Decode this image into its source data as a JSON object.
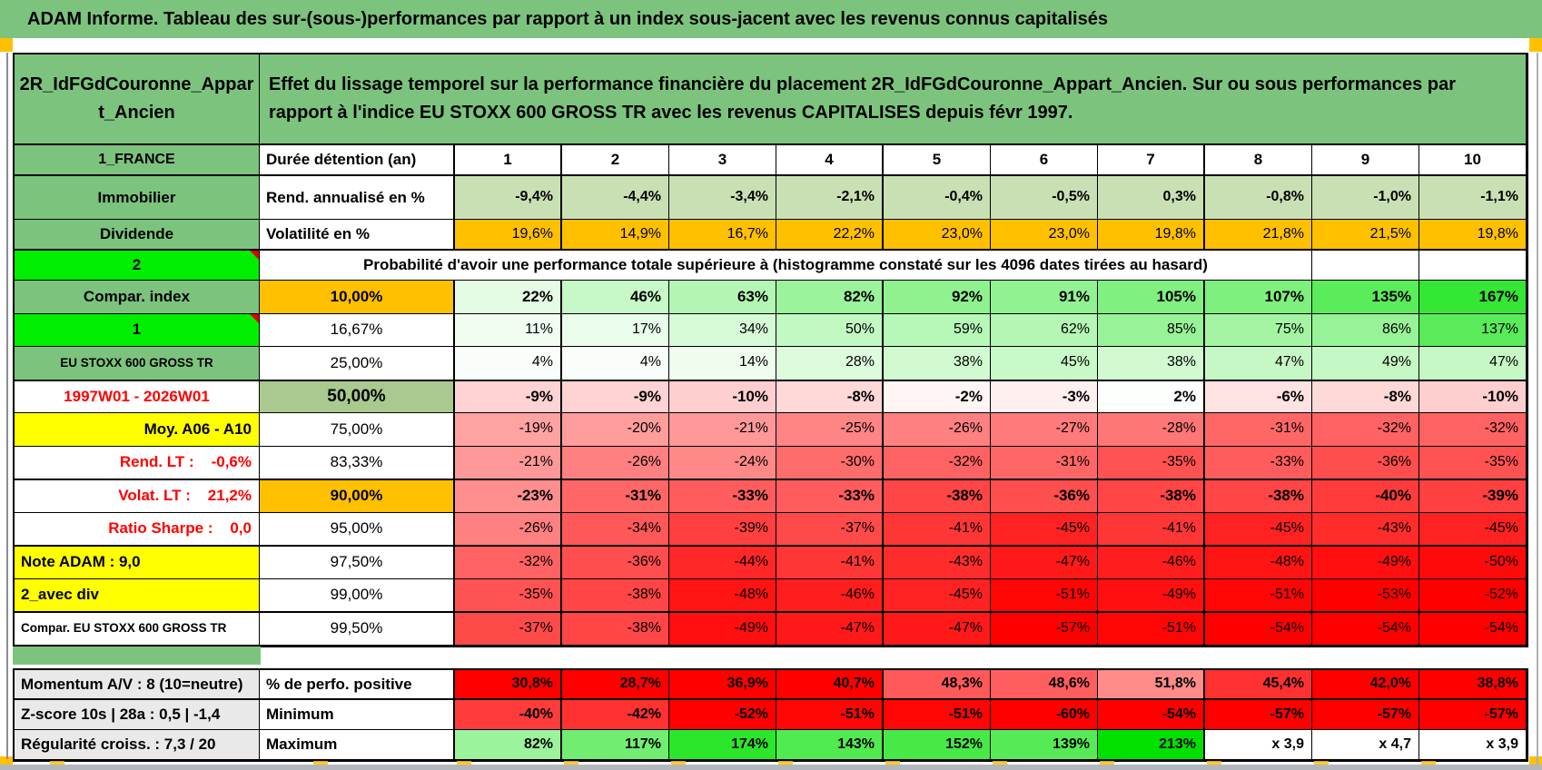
{
  "title": "ADAM Informe. Tableau des sur-(sous-)performances par rapport à un index sous-jacent avec les revenus connus capitalisés",
  "colors": {
    "table_green": "#7cc47e",
    "bright_green": "#00ee00",
    "orange": "#ffc000",
    "yellow": "#ffff00",
    "olive": "#a9c98f",
    "light_green_row": "#c9e0b4",
    "gray_label": "#e9e9e9",
    "red_text": "#ff0000",
    "marker_orange": "#ffc000"
  },
  "header": {
    "placement_name": "2R_IdFGdCouronne_Appart_Ancien",
    "description": "Effet du lissage temporel sur la performance financière du placement 2R_IdFGdCouronne_Appart_Ancien. Sur ou sous performances par rapport à l'indice EU STOXX 600 GROSS TR avec les revenus CAPITALISES depuis févr 1997."
  },
  "duration_row": {
    "label": "1_FRANCE",
    "metric": "Durée détention (an)",
    "values": [
      "1",
      "2",
      "3",
      "4",
      "5",
      "6",
      "7",
      "8",
      "9",
      "10"
    ]
  },
  "top_rows": [
    {
      "label": "Immobilier",
      "metric": "Rend. annualisé en %",
      "cmap": "lightgreen",
      "bold": true,
      "values": [
        "-9,4%",
        "-4,4%",
        "-3,4%",
        "-2,1%",
        "-0,4%",
        "-0,5%",
        "0,3%",
        "-0,8%",
        "-1,0%",
        "-1,1%"
      ]
    },
    {
      "label": "Dividende",
      "metric": "Volatilité en %",
      "cmap": "orange",
      "bold": false,
      "values": [
        "19,6%",
        "14,9%",
        "16,7%",
        "22,2%",
        "23,0%",
        "23,0%",
        "19,8%",
        "21,8%",
        "21,5%",
        "19,8%"
      ]
    }
  ],
  "probability_header": {
    "label": "2",
    "text": "Probabilité d'avoir une performance totale supérieure à (histogramme constaté sur les 4096 dates tirées au hasard)"
  },
  "probability_rows": [
    {
      "label": "Compar. index",
      "label_style": "green",
      "threshold": "10,00%",
      "threshold_style": "orange",
      "bold": true,
      "thick_top": false,
      "values": [
        "22%",
        "46%",
        "63%",
        "82%",
        "92%",
        "91%",
        "105%",
        "107%",
        "135%",
        "167%"
      ]
    },
    {
      "label": "1",
      "label_style": "bright",
      "marker": true,
      "threshold": "16,67%",
      "threshold_style": "plain",
      "bold": false,
      "thick_top": false,
      "values": [
        "11%",
        "17%",
        "34%",
        "50%",
        "59%",
        "62%",
        "85%",
        "75%",
        "86%",
        "137%"
      ]
    },
    {
      "label": "EU STOXX 600 GROSS TR",
      "label_style": "green-small",
      "threshold": "25,00%",
      "threshold_style": "plain",
      "bold": false,
      "thick_top": false,
      "values": [
        "4%",
        "4%",
        "14%",
        "28%",
        "38%",
        "45%",
        "38%",
        "47%",
        "49%",
        "47%"
      ]
    },
    {
      "label": "1997W01 - 2026W01",
      "label_style": "red-center",
      "threshold": "50,00%",
      "threshold_style": "olive",
      "bold": true,
      "thick_top": true,
      "values": [
        "-9%",
        "-9%",
        "-10%",
        "-8%",
        "-2%",
        "-3%",
        "2%",
        "-6%",
        "-8%",
        "-10%"
      ]
    },
    {
      "label": "Moy. A06 - A10",
      "label_style": "yellow-right",
      "threshold": "75,00%",
      "threshold_style": "plain",
      "bold": false,
      "thick_top": false,
      "values": [
        "-19%",
        "-20%",
        "-21%",
        "-25%",
        "-26%",
        "-27%",
        "-28%",
        "-31%",
        "-32%",
        "-32%"
      ]
    },
    {
      "label": "Rend. LT :    -0,6%",
      "label_style": "red-right",
      "threshold": "83,33%",
      "threshold_style": "plain",
      "bold": false,
      "thick_top": false,
      "values": [
        "-21%",
        "-26%",
        "-24%",
        "-30%",
        "-32%",
        "-31%",
        "-35%",
        "-33%",
        "-36%",
        "-35%"
      ]
    },
    {
      "label": "Volat. LT :    21,2%",
      "label_style": "red-right",
      "threshold": "90,00%",
      "threshold_style": "orange",
      "bold": true,
      "thick_top": true,
      "values": [
        "-23%",
        "-31%",
        "-33%",
        "-33%",
        "-38%",
        "-36%",
        "-38%",
        "-38%",
        "-40%",
        "-39%"
      ]
    },
    {
      "label": "Ratio Sharpe :    0,0",
      "label_style": "red-right",
      "threshold": "95,00%",
      "threshold_style": "plain",
      "bold": false,
      "thick_top": false,
      "values": [
        "-26%",
        "-34%",
        "-39%",
        "-37%",
        "-41%",
        "-45%",
        "-41%",
        "-45%",
        "-43%",
        "-45%"
      ]
    },
    {
      "label": "Note ADAM : 9,0",
      "label_style": "yellow-left",
      "threshold": "97,50%",
      "threshold_style": "plain",
      "bold": false,
      "thick_top": true,
      "values": [
        "-32%",
        "-36%",
        "-44%",
        "-41%",
        "-43%",
        "-47%",
        "-46%",
        "-48%",
        "-49%",
        "-50%"
      ]
    },
    {
      "label": "2_avec div",
      "label_style": "yellow-left",
      "threshold": "99,00%",
      "threshold_style": "plain",
      "bold": false,
      "thick_top": false,
      "values": [
        "-35%",
        "-38%",
        "-48%",
        "-46%",
        "-45%",
        "-51%",
        "-49%",
        "-51%",
        "-53%",
        "-52%"
      ]
    },
    {
      "label": "Compar. EU STOXX 600 GROSS TR",
      "label_style": "white-left-small",
      "threshold": "99,50%",
      "threshold_style": "plain",
      "bold": false,
      "thick_top": true,
      "values": [
        "-37%",
        "-38%",
        "-49%",
        "-47%",
        "-47%",
        "-57%",
        "-51%",
        "-54%",
        "-54%",
        "-54%"
      ]
    }
  ],
  "footer_rows": [
    {
      "label": "Momentum A/V : 8 (10=neutre)",
      "metric": "% de perfo. positive",
      "cmap": "perfo",
      "bold": true,
      "thick_bottom": true,
      "values": [
        "30,8%",
        "28,7%",
        "36,9%",
        "40,7%",
        "48,3%",
        "48,6%",
        "51,8%",
        "45,4%",
        "42,0%",
        "38,8%"
      ]
    },
    {
      "label": "Z-score 10s | 28a : 0,5 | -1,4",
      "metric": "Minimum",
      "cmap": "div",
      "bold": true,
      "thick_bottom": false,
      "values": [
        "-40%",
        "-42%",
        "-52%",
        "-51%",
        "-51%",
        "-60%",
        "-54%",
        "-57%",
        "-57%",
        "-57%"
      ]
    },
    {
      "label": "Régularité croiss. : 7,3 / 20",
      "metric": "Maximum",
      "cmap": "div",
      "bold": true,
      "thick_bottom": false,
      "values": [
        "82%",
        "117%",
        "174%",
        "143%",
        "152%",
        "139%",
        "213%",
        "x 3,9",
        "x 4,7",
        "x 3,9"
      ]
    }
  ]
}
